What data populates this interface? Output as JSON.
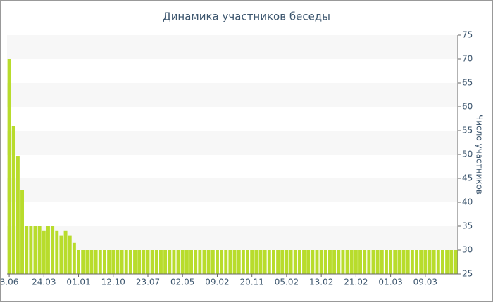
{
  "chart_data": {
    "type": "bar",
    "title": "Динамика участников беседы",
    "y_label": "Число участников",
    "color": "#b8dc2c",
    "grid": true,
    "y_axis_side": "right",
    "ylim": [
      25,
      75
    ],
    "yticks": [
      25,
      30,
      35,
      40,
      45,
      50,
      55,
      60,
      65,
      70,
      75
    ],
    "categories": [
      "3.06",
      null,
      null,
      null,
      null,
      null,
      null,
      null,
      "24.03",
      null,
      null,
      null,
      null,
      null,
      null,
      null,
      "01.01",
      null,
      null,
      null,
      null,
      null,
      null,
      null,
      "12.10",
      null,
      null,
      null,
      null,
      null,
      null,
      null,
      "23.07",
      null,
      null,
      null,
      null,
      null,
      null,
      null,
      "02.05",
      null,
      null,
      null,
      null,
      null,
      null,
      null,
      "09.02",
      null,
      null,
      null,
      null,
      null,
      null,
      null,
      "20.11",
      null,
      null,
      null,
      null,
      null,
      null,
      null,
      "05.02",
      null,
      null,
      null,
      null,
      null,
      null,
      null,
      "13.02",
      null,
      null,
      null,
      null,
      null,
      null,
      null,
      "21.02",
      null,
      null,
      null,
      null,
      null,
      null,
      null,
      "01.03",
      null,
      null,
      null,
      null,
      null,
      null,
      null,
      "09.03",
      null,
      null,
      null,
      null,
      null,
      null,
      null
    ],
    "values": [
      70,
      56,
      49.7,
      42.5,
      35,
      35,
      35,
      35,
      34,
      35,
      35,
      34,
      33,
      34,
      33,
      31.5,
      30,
      30,
      30,
      30,
      30,
      30,
      30,
      30,
      30,
      30,
      30,
      30,
      30,
      30,
      30,
      30,
      30,
      30,
      30,
      30,
      30,
      30,
      30,
      30,
      30,
      30,
      30,
      30,
      30,
      30,
      30,
      30,
      30,
      30,
      30,
      30,
      30,
      30,
      30,
      30,
      30,
      30,
      30,
      30,
      30,
      30,
      30,
      30,
      30,
      30,
      30,
      30,
      30,
      30,
      30,
      30,
      30,
      30,
      30,
      30,
      30,
      30,
      30,
      30,
      30,
      30,
      30,
      30,
      30,
      30,
      30,
      30,
      30,
      30,
      30,
      30,
      30,
      30,
      30,
      30,
      30,
      30,
      30,
      30,
      30,
      30,
      30,
      30
    ]
  }
}
